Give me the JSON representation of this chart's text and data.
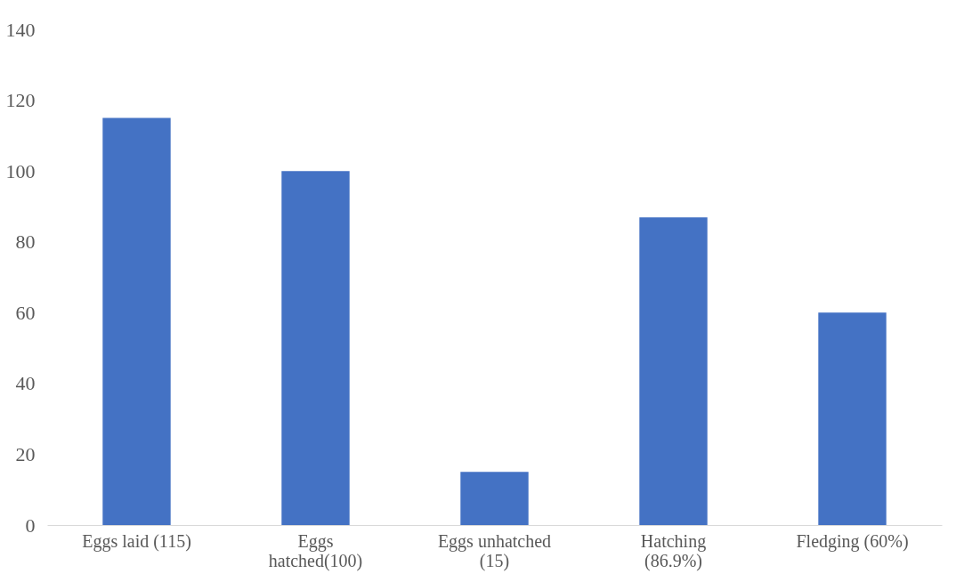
{
  "chart_data": {
    "type": "bar",
    "categories": [
      "Eggs laid (115)",
      "Eggs hatched(100)",
      "Eggs unhatched (15)",
      "Hatching (86.9%)",
      "Fledging (60%)"
    ],
    "values": [
      115,
      100,
      15,
      86.9,
      60
    ],
    "color": "#4472c4",
    "ylim": [
      0,
      140
    ],
    "yticks": [
      0,
      20,
      40,
      60,
      80,
      100,
      120,
      140
    ],
    "grid": false
  }
}
